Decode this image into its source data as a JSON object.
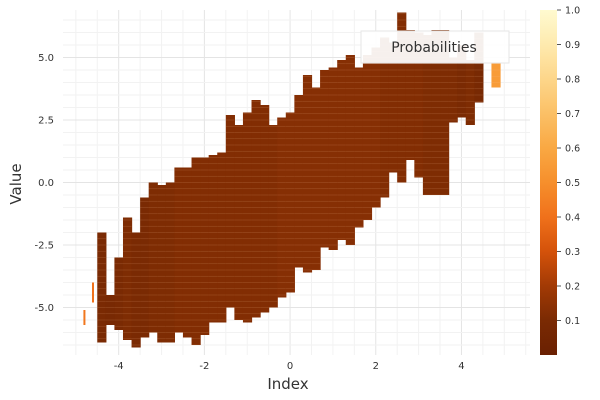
{
  "chart_data": {
    "type": "heatmap",
    "xlabel": "Index",
    "ylabel": "Value",
    "xlim": [
      -5.3,
      5.6
    ],
    "ylim": [
      -6.9,
      6.9
    ],
    "x_ticks": [
      -4,
      -2,
      0,
      2,
      4
    ],
    "y_ticks": [
      -5.0,
      -2.5,
      0.0,
      2.5,
      5.0
    ],
    "y_tick_labels": [
      "-5.0",
      "-2.5",
      "0.0",
      "2.5",
      "5.0"
    ],
    "grid": true,
    "legend": {
      "entries": [
        "Probabilities"
      ],
      "placement": "top-right"
    },
    "colorbar": {
      "colormap": "afmhot",
      "range": [
        0,
        1
      ],
      "ticks": [
        0.1,
        0.2,
        0.3,
        0.4,
        0.5,
        0.6,
        0.7,
        0.8,
        0.9,
        1.0
      ],
      "tick_labels": [
        "0.1",
        "0.2",
        "0.3",
        "0.4",
        "0.5",
        "0.6",
        "0.7",
        "0.8",
        "0.9",
        "1.0"
      ]
    },
    "column_width": 0.2,
    "columns": [
      {
        "x": -4.8,
        "y_min": -5.7,
        "y_max": -5.1,
        "value": 0.42,
        "thin": true
      },
      {
        "x": -4.6,
        "y_min": -4.8,
        "y_max": -4.0,
        "value": 0.4,
        "thin": true
      },
      {
        "x": -4.4,
        "y_min": -6.4,
        "y_max": -2.0,
        "value": 0.1
      },
      {
        "x": -4.2,
        "y_min": -5.7,
        "y_max": -4.5,
        "value": 0.09
      },
      {
        "x": -4.0,
        "y_min": -5.9,
        "y_max": -3.0,
        "value": 0.1
      },
      {
        "x": -3.8,
        "y_min": -6.3,
        "y_max": -1.4,
        "value": 0.11
      },
      {
        "x": -3.6,
        "y_min": -6.6,
        "y_max": -2.0,
        "value": 0.1
      },
      {
        "x": -3.4,
        "y_min": -6.2,
        "y_max": -0.6,
        "value": 0.1
      },
      {
        "x": -3.2,
        "y_min": -6.0,
        "y_max": 0.0,
        "value": 0.11
      },
      {
        "x": -3.0,
        "y_min": -6.4,
        "y_max": -0.1,
        "value": 0.11
      },
      {
        "x": -2.8,
        "y_min": -6.4,
        "y_max": 0.0,
        "value": 0.11
      },
      {
        "x": -2.6,
        "y_min": -6.0,
        "y_max": 0.6,
        "value": 0.12
      },
      {
        "x": -2.4,
        "y_min": -6.2,
        "y_max": 0.6,
        "value": 0.12
      },
      {
        "x": -2.2,
        "y_min": -6.5,
        "y_max": 1.0,
        "value": 0.12
      },
      {
        "x": -2.0,
        "y_min": -6.1,
        "y_max": 1.0,
        "value": 0.12
      },
      {
        "x": -1.8,
        "y_min": -5.6,
        "y_max": 1.1,
        "value": 0.12
      },
      {
        "x": -1.6,
        "y_min": -5.6,
        "y_max": 1.2,
        "value": 0.12
      },
      {
        "x": -1.4,
        "y_min": -5.0,
        "y_max": 2.7,
        "value": 0.12
      },
      {
        "x": -1.2,
        "y_min": -5.5,
        "y_max": 2.3,
        "value": 0.12
      },
      {
        "x": -1.0,
        "y_min": -5.6,
        "y_max": 2.8,
        "value": 0.12
      },
      {
        "x": -0.8,
        "y_min": -5.4,
        "y_max": 3.3,
        "value": 0.12
      },
      {
        "x": -0.6,
        "y_min": -5.2,
        "y_max": 3.1,
        "value": 0.12
      },
      {
        "x": -0.4,
        "y_min": -5.0,
        "y_max": 2.3,
        "value": 0.12
      },
      {
        "x": -0.2,
        "y_min": -4.6,
        "y_max": 2.6,
        "value": 0.13
      },
      {
        "x": 0.0,
        "y_min": -4.4,
        "y_max": 2.8,
        "value": 0.13
      },
      {
        "x": 0.2,
        "y_min": -3.4,
        "y_max": 3.5,
        "value": 0.13
      },
      {
        "x": 0.4,
        "y_min": -3.6,
        "y_max": 4.3,
        "value": 0.13
      },
      {
        "x": 0.6,
        "y_min": -3.5,
        "y_max": 3.8,
        "value": 0.13
      },
      {
        "x": 0.8,
        "y_min": -2.6,
        "y_max": 4.5,
        "value": 0.13
      },
      {
        "x": 1.0,
        "y_min": -2.7,
        "y_max": 4.6,
        "value": 0.13
      },
      {
        "x": 1.2,
        "y_min": -2.3,
        "y_max": 4.9,
        "value": 0.13
      },
      {
        "x": 1.4,
        "y_min": -2.5,
        "y_max": 5.1,
        "value": 0.13
      },
      {
        "x": 1.6,
        "y_min": -1.8,
        "y_max": 4.6,
        "value": 0.13
      },
      {
        "x": 1.8,
        "y_min": -1.5,
        "y_max": 5.1,
        "value": 0.13
      },
      {
        "x": 2.0,
        "y_min": -1.0,
        "y_max": 5.4,
        "value": 0.13
      },
      {
        "x": 2.2,
        "y_min": -0.6,
        "y_max": 5.8,
        "value": 0.12
      },
      {
        "x": 2.4,
        "y_min": 0.4,
        "y_max": 5.6,
        "value": 0.12
      },
      {
        "x": 2.6,
        "y_min": 0.0,
        "y_max": 6.8,
        "value": 0.12
      },
      {
        "x": 2.8,
        "y_min": 0.9,
        "y_max": 6.1,
        "value": 0.12
      },
      {
        "x": 3.0,
        "y_min": 0.2,
        "y_max": 6.0,
        "value": 0.12
      },
      {
        "x": 3.2,
        "y_min": -0.5,
        "y_max": 5.9,
        "value": 0.11
      },
      {
        "x": 3.4,
        "y_min": -0.5,
        "y_max": 6.1,
        "value": 0.11
      },
      {
        "x": 3.6,
        "y_min": -0.5,
        "y_max": 6.1,
        "value": 0.11
      },
      {
        "x": 3.8,
        "y_min": 2.4,
        "y_max": 5.0,
        "value": 0.11
      },
      {
        "x": 4.0,
        "y_min": 2.6,
        "y_max": 5.5,
        "value": 0.1
      },
      {
        "x": 4.2,
        "y_min": 2.3,
        "y_max": 4.9,
        "value": 0.11
      },
      {
        "x": 4.4,
        "y_min": 3.2,
        "y_max": 6.0,
        "value": 0.09
      },
      {
        "x": 4.8,
        "y_min": 3.8,
        "y_max": 4.8,
        "value": 0.55
      }
    ]
  }
}
